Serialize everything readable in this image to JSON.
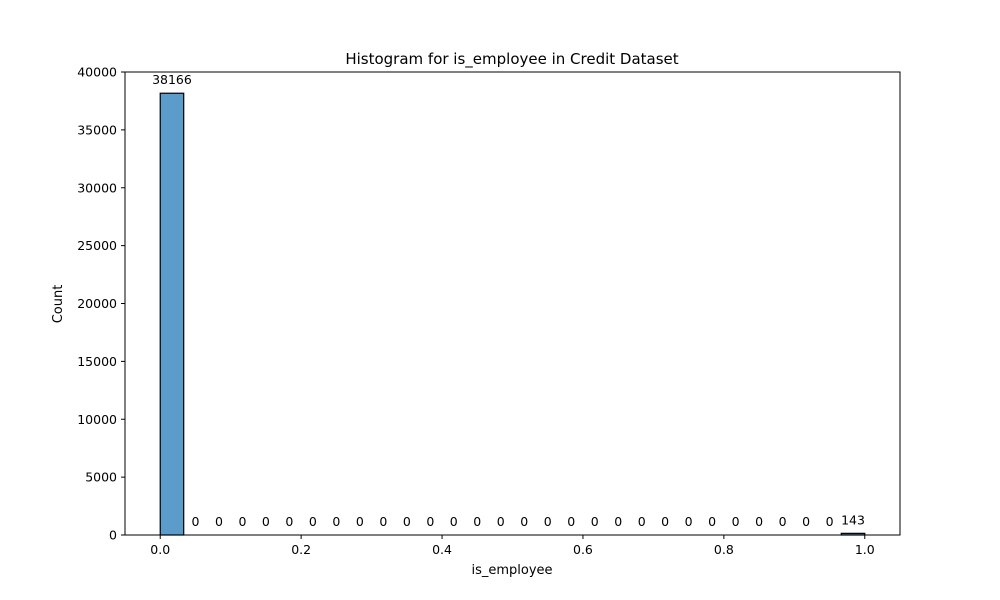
{
  "chart_data": {
    "type": "bar",
    "title": "Histogram for is_employee in Credit Dataset",
    "xlabel": "is_employee",
    "ylabel": "Count",
    "xlim": [
      -0.05,
      1.05
    ],
    "ylim": [
      0,
      40000
    ],
    "x_ticks": [
      "0.0",
      "0.2",
      "0.4",
      "0.6",
      "0.8",
      "1.0"
    ],
    "y_ticks": [
      "0",
      "5000",
      "10000",
      "15000",
      "20000",
      "25000",
      "30000",
      "35000",
      "40000"
    ],
    "bin_range": [
      0,
      1
    ],
    "values": [
      38166,
      0,
      0,
      0,
      0,
      0,
      0,
      0,
      0,
      0,
      0,
      0,
      0,
      0,
      0,
      0,
      0,
      0,
      0,
      0,
      0,
      0,
      0,
      0,
      0,
      0,
      0,
      0,
      0,
      143
    ],
    "data_labels": [
      "38166",
      "0",
      "0",
      "0",
      "0",
      "0",
      "0",
      "0",
      "0",
      "0",
      "0",
      "0",
      "0",
      "0",
      "0",
      "0",
      "0",
      "0",
      "0",
      "0",
      "0",
      "0",
      "0",
      "0",
      "0",
      "0",
      "0",
      "0",
      "0",
      "143"
    ],
    "bar_color": "#5b9cca",
    "grid": false,
    "legend": "none"
  }
}
